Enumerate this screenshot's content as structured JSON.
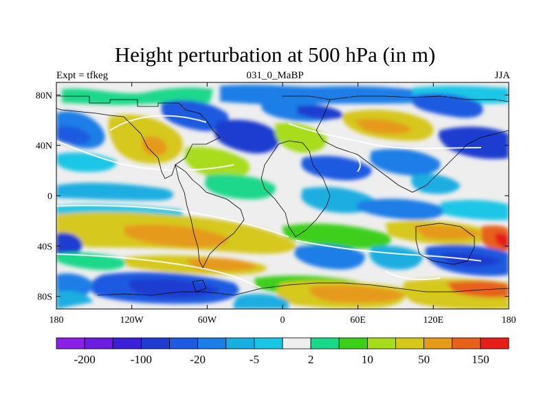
{
  "title": "Height perturbation at 500 hPa (in m)",
  "left_string": "Expt = tfkeg",
  "center_string": "031_0_MaBP",
  "right_string": "JJA",
  "axes": {
    "x_ticks": [
      {
        "lon": -180,
        "label": "180"
      },
      {
        "lon": -120,
        "label": "120W"
      },
      {
        "lon": -60,
        "label": "60W"
      },
      {
        "lon": 0,
        "label": "0"
      },
      {
        "lon": 60,
        "label": "60E"
      },
      {
        "lon": 120,
        "label": "120E"
      },
      {
        "lon": 180,
        "label": "180"
      }
    ],
    "y_ticks": [
      {
        "lat": 80,
        "label": "80N"
      },
      {
        "lat": 40,
        "label": "40N"
      },
      {
        "lat": 0,
        "label": "0"
      },
      {
        "lat": -40,
        "label": "40S"
      },
      {
        "lat": -80,
        "label": "80S"
      }
    ],
    "lon_range": [
      -180,
      180
    ],
    "lat_range": [
      -90,
      90
    ]
  },
  "colorbar": {
    "colors": [
      "#8a1fe6",
      "#6a1ee0",
      "#3b1fd6",
      "#1e3ccf",
      "#1c5ae0",
      "#1a7ee6",
      "#1aaee0",
      "#1ac6e6",
      "#eeeeee",
      "#1ad88a",
      "#3ecf1a",
      "#a8dc1a",
      "#d6c81a",
      "#e69a1a",
      "#e6621a",
      "#e61e1a"
    ],
    "labels": [
      {
        "after": 1,
        "text": "-200"
      },
      {
        "after": 3,
        "text": "-100"
      },
      {
        "after": 5,
        "text": "-20"
      },
      {
        "after": 7,
        "text": "-5"
      },
      {
        "after": 9,
        "text": "2"
      },
      {
        "after": 11,
        "text": "10"
      },
      {
        "after": 13,
        "text": "50"
      },
      {
        "after": 15,
        "text": "150"
      }
    ]
  }
}
